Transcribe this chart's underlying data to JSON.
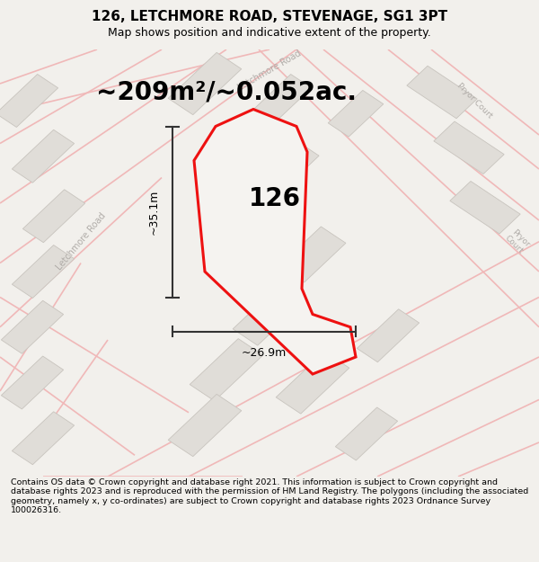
{
  "title": "126, LETCHMORE ROAD, STEVENAGE, SG1 3PT",
  "subtitle": "Map shows position and indicative extent of the property.",
  "area_text": "~209m²/~0.052ac.",
  "dim_width": "~26.9m",
  "dim_height": "~35.1m",
  "house_number": "126",
  "footer": "Contains OS data © Crown copyright and database right 2021. This information is subject to Crown copyright and database rights 2023 and is reproduced with the permission of HM Land Registry. The polygons (including the associated geometry, namely x, y co-ordinates) are subject to Crown copyright and database rights 2023 Ordnance Survey 100026316.",
  "bg_color": "#f2f0ec",
  "map_bg": "#f9f8f6",
  "plot_color": "#ee1111",
  "plot_fill": "#f5f3f0",
  "road_color": "#f0b8b8",
  "building_color": "#e0ddd8",
  "building_edge": "#c8c4be",
  "dim_color": "#333333",
  "road_label_color": "#b0aca8",
  "title_fontsize": 11,
  "subtitle_fontsize": 9,
  "area_fontsize": 20,
  "house_fontsize": 20,
  "footer_fontsize": 6.8,
  "road_linewidth": 1.2,
  "plot_linewidth": 2.2
}
